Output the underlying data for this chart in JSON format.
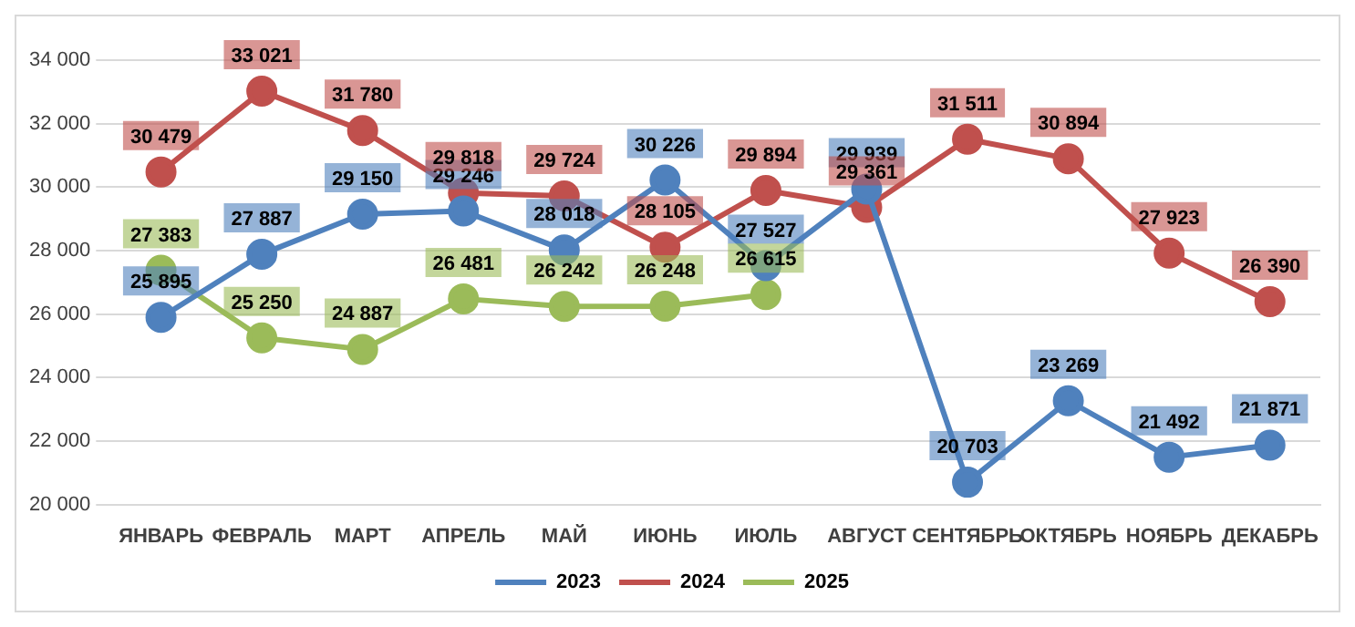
{
  "chart_data": {
    "type": "line",
    "categories": [
      "ЯНВАРЬ",
      "ФЕВРАЛЬ",
      "МАРТ",
      "АПРЕЛЬ",
      "МАЙ",
      "ИЮНЬ",
      "ИЮЛЬ",
      "АВГУСТ",
      "СЕНТЯБРЬ",
      "ОКТЯБРЬ",
      "НОЯБРЬ",
      "ДЕКАБРЬ"
    ],
    "series": [
      {
        "name": "2023",
        "color": "#4f81bd",
        "values": [
          25895,
          27887,
          29150,
          29246,
          28018,
          30226,
          27527,
          29939,
          20703,
          23269,
          21492,
          21871
        ],
        "value_labels": [
          "25 895",
          "27 887",
          "29 150",
          "29 246",
          "28 018",
          "30 226",
          "27 527",
          "29 939",
          "20 703",
          "23 269",
          "21 492",
          "21 871"
        ]
      },
      {
        "name": "2024",
        "color": "#c0504d",
        "values": [
          30479,
          33021,
          31780,
          29818,
          29724,
          28105,
          29894,
          29361,
          31511,
          30894,
          27923,
          26390
        ],
        "value_labels": [
          "30 479",
          "33 021",
          "31 780",
          "29 818",
          "29 724",
          "28 105",
          "29 894",
          "29 361",
          "31 511",
          "30 894",
          "27 923",
          "26 390"
        ]
      },
      {
        "name": "2025",
        "color": "#9bbb59",
        "values": [
          27383,
          25250,
          24887,
          26481,
          26242,
          26248,
          26615,
          null,
          null,
          null,
          null,
          null
        ],
        "value_labels": [
          "27 383",
          "25 250",
          "24 887",
          "26 481",
          "26 242",
          "26 248",
          "26 615",
          null,
          null,
          null,
          null,
          null
        ]
      }
    ],
    "ylim": [
      20000,
      34000
    ],
    "yticks": [
      {
        "value": 20000,
        "label": "20 000"
      },
      {
        "value": 22000,
        "label": "22 000"
      },
      {
        "value": 24000,
        "label": "24 000"
      },
      {
        "value": 26000,
        "label": "26 000"
      },
      {
        "value": 28000,
        "label": "28 000"
      },
      {
        "value": 30000,
        "label": "30 000"
      },
      {
        "value": 32000,
        "label": "32 000"
      },
      {
        "value": 34000,
        "label": "34 000"
      }
    ],
    "grid": "y",
    "legend": "bottom",
    "marker": "circle",
    "line_style": "solid"
  }
}
